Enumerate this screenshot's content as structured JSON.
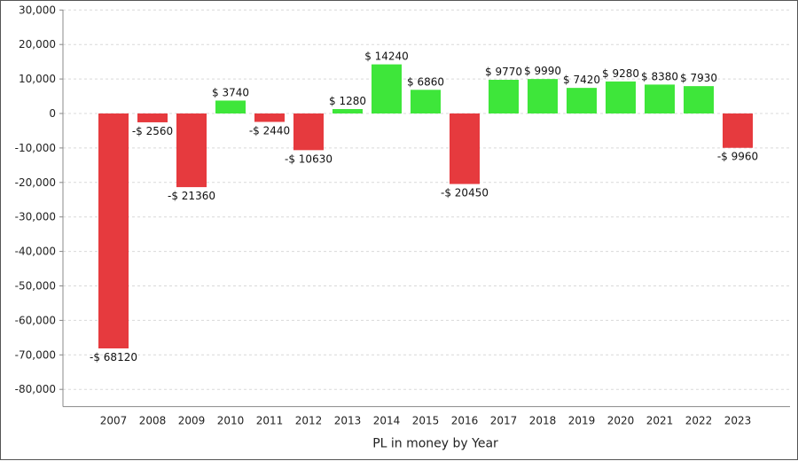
{
  "chart_data": {
    "type": "bar",
    "xlabel": "PL in money by Year",
    "ylabel": "",
    "ylim": [
      -85000,
      30000
    ],
    "yticks": [
      30000,
      20000,
      10000,
      0,
      -10000,
      -20000,
      -30000,
      -40000,
      -50000,
      -60000,
      -70000,
      -80000
    ],
    "ytick_labels": [
      "30,000",
      "20,000",
      "10,000",
      "0",
      "-10,000",
      "-20,000",
      "-30,000",
      "-40,000",
      "-50,000",
      "-60,000",
      "-70,000",
      "-80,000"
    ],
    "grid": true,
    "categories": [
      "2007",
      "2008",
      "2009",
      "2010",
      "2011",
      "2012",
      "2013",
      "2014",
      "2015",
      "2016",
      "2017",
      "2018",
      "2019",
      "2020",
      "2021",
      "2022",
      "2023"
    ],
    "values": [
      -68120,
      -2560,
      -21360,
      3740,
      -2440,
      -10630,
      1280,
      14240,
      6860,
      -20450,
      9770,
      9990,
      7420,
      9280,
      8380,
      7930,
      -9960
    ],
    "data_labels": [
      "-$ 68120",
      "-$ 2560",
      "-$ 21360",
      "$ 3740",
      "-$ 2440",
      "-$ 10630",
      "$ 1280",
      "$ 14240",
      "$ 6860",
      "-$ 20450",
      "$ 9770",
      "$ 9990",
      "$ 7420",
      "$ 9280",
      "$ 8380",
      "$ 7930",
      "-$ 9960"
    ],
    "colors": {
      "positive": "#3ee63a",
      "negative": "#e63a3e",
      "grid": "#d9d9d9",
      "axis": "#888888"
    }
  }
}
